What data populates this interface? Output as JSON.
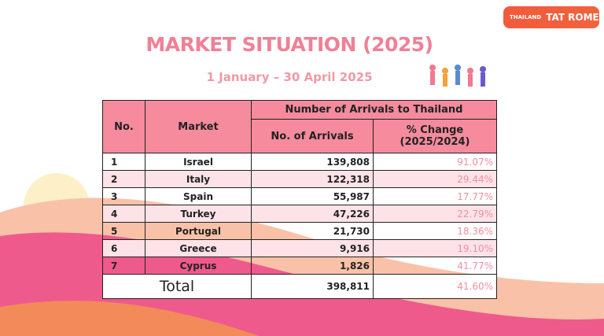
{
  "header": {
    "logo_small": "THAILAND",
    "logo": "TAT ROME"
  },
  "title": "MARKET SITUATION (2025)",
  "subtitle": "1 January – 30 April 2025",
  "table": {
    "headers": {
      "no": "No.",
      "market": "Market",
      "group": "Number of Arrivals to Thailand",
      "arrivals": "No. of Arrivals",
      "change": "% Change (2025/2024)"
    },
    "rows": [
      [
        "1",
        "Israel",
        "139,808",
        "91.07%"
      ],
      [
        "2",
        "Italy",
        "122,318",
        "29.44%"
      ],
      [
        "3",
        "Spain",
        "55,987",
        "17.77%"
      ],
      [
        "4",
        "Turkey",
        "47,226",
        "22.79%"
      ],
      [
        "5",
        "Portugal",
        "21,730",
        "18.36%"
      ],
      [
        "6",
        "Greece",
        "9,916",
        "19.10%"
      ],
      [
        "7",
        "Cyprus",
        "1,826",
        "41.77%"
      ]
    ],
    "total": [
      "Total",
      "398,811",
      "41.60%"
    ]
  }
}
